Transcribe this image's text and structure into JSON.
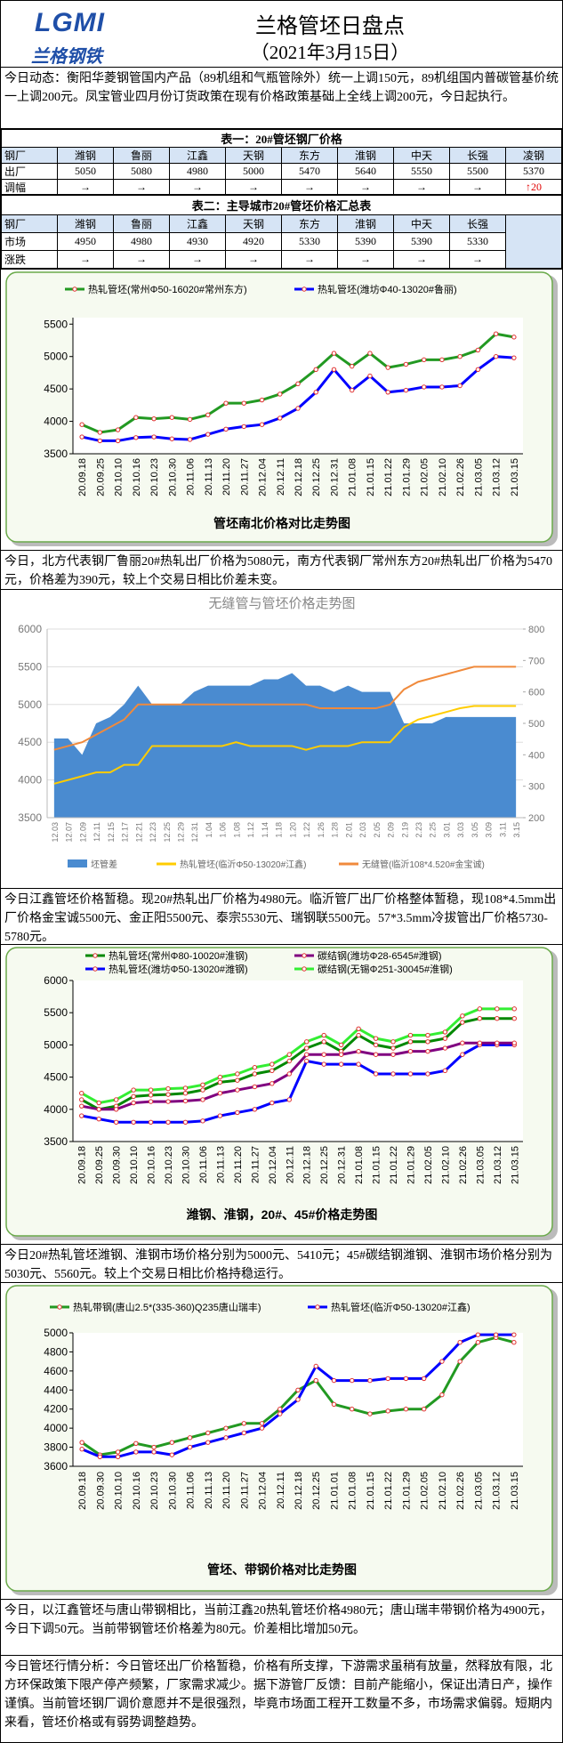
{
  "header": {
    "logo_text": "LGMI",
    "logo_name": "兰格钢铁",
    "title": "兰格管坯日盘点",
    "date": "（2021年3月15日）"
  },
  "paragraphs": [
    "今日动态：衡阳华菱钢管国内产品（89机组和气瓶管除外）统一上调150元，89机组国内普碳管基价统一上调200元。凤宝管业四月份订货政策在现有价格政策基础上全线上调200元，今日起执行。",
    "今日，北方代表钢厂鲁丽20#热轧出厂价格为5080元，南方代表钢厂常州东方20#热轧出厂价格为5470元，价格差为390元，较上个交易日相比价差未变。",
    "今日江鑫管坯价格暂稳。现20#热轧出厂价格为4980元。临沂管厂出厂价格整体暂稳，现108*4.5mm出厂价格金宝诚5500元、金正阳5500元、泰宗5530元、瑞钢联5500元。57*3.5mm冷拔管出厂价格5730-5780元。",
    "今日20#热轧管坯潍钢、淮钢市场价格分别为5000元、5410元；45#碳结钢潍钢、淮钢市场价格分别为5030元、5560元。较上个交易日相比价格持稳运行。",
    "今日，以江鑫管坯与唐山带钢相比，当前江鑫20热轧管坯价格4980元；唐山瑞丰带钢价格为4900元，今日下调50元。当前带钢管坯价格差为80元。价差相比增加50元。",
    "今日管坯行情分析：今日管坯出厂价格暂稳，价格有所支撑，下游需求虽稍有放量，然释放有限，北方环保政策下限产停产频繁，厂家需求减少。据下游管厂反馈：目前产能缩小，保证出清日产，操作谨慎。当前管坯钢厂调价意愿并不是很强烈，毕竟市场面工程开工数量不多，市场需求偏弱。短期内来看，管坯价格或有弱势调整趋势。"
  ],
  "tables": [
    {
      "title": "表一：20#管坯钢厂价格",
      "header": [
        "钢厂",
        "潍钢",
        "鲁丽",
        "江鑫",
        "天钢",
        "东方",
        "淮钢",
        "中天",
        "长强",
        "凌钢"
      ],
      "rows": [
        [
          "出厂",
          5050,
          5080,
          4980,
          5000,
          5470,
          5640,
          5550,
          5500,
          5370
        ],
        [
          "调幅",
          "→",
          "→",
          "→",
          "→",
          "→",
          "→",
          "→",
          "→",
          "↑20"
        ]
      ]
    },
    {
      "title": "表二：主导城市20#管坯价格汇总表",
      "header": [
        "钢厂",
        "潍钢",
        "鲁丽",
        "江鑫",
        "天钢",
        "东方",
        "淮钢",
        "中天",
        "长强"
      ],
      "rows": [
        [
          "市场",
          4950,
          4980,
          4930,
          4920,
          5330,
          5390,
          5390,
          5330
        ],
        [
          "涨跌",
          "→",
          "→",
          "→",
          "→",
          "→",
          "→",
          "→",
          "→"
        ]
      ]
    }
  ],
  "chart_data": [
    {
      "type": "line",
      "title": "管坯南北价格对比走势图",
      "markers": true,
      "grid": false,
      "categories": [
        "20.09.18",
        "20.09.25",
        "20.10.10",
        "20.10.16",
        "20.10.23",
        "20.10.30",
        "20.11.06",
        "20.11.13",
        "20.11.20",
        "20.11.27",
        "20.12.04",
        "20.12.11",
        "20.12.18",
        "20.12.25",
        "20.12.31",
        "21.01.08",
        "21.01.15",
        "21.01.22",
        "21.01.29",
        "21.02.05",
        "21.02.10",
        "21.02.26",
        "21.03.05",
        "21.03.12",
        "21.03.15"
      ],
      "ylim": [
        3500,
        5600
      ],
      "yticks": [
        3500,
        4000,
        4500,
        5000,
        5500
      ],
      "series": [
        {
          "name": "热轧管坯(常州Φ50-16020#常州东方)",
          "color": "#229922",
          "values": [
            3950,
            3830,
            3870,
            4060,
            4040,
            4060,
            4030,
            4100,
            4280,
            4280,
            4330,
            4420,
            4580,
            4800,
            5050,
            4850,
            5050,
            4830,
            4880,
            4950,
            4950,
            5000,
            5100,
            5350,
            5300
          ]
        },
        {
          "name": "热轧管坯(潍坊Φ40-13020#鲁丽)",
          "color": "#0000ff",
          "values": [
            3760,
            3700,
            3700,
            3750,
            3760,
            3730,
            3720,
            3800,
            3880,
            3920,
            3950,
            4050,
            4200,
            4450,
            4800,
            4480,
            4700,
            4450,
            4480,
            4530,
            4530,
            4550,
            4800,
            5000,
            4980
          ]
        }
      ]
    },
    {
      "type": "line",
      "title": "无缝管与管坯价格走势图",
      "markers": false,
      "grid": true,
      "categories": [
        "12.03",
        "12.07",
        "12.09",
        "12.11",
        "12.15",
        "12.17",
        "12.21",
        "12.23",
        "12.25",
        "12.29",
        "12.31",
        "1.04",
        "1.06",
        "1.08",
        "1.12",
        "1.14",
        "1.18",
        "1.20",
        "1.22",
        "1.26",
        "1.28",
        "2.01",
        "2.03",
        "2.05",
        "2.09",
        "2.19",
        "2.23",
        "2.25",
        "3.01",
        "3.03",
        "3.05",
        "3.09",
        "3.11",
        "3.15"
      ],
      "ylim": [
        3500,
        6000
      ],
      "yticks": [
        3500,
        4000,
        4500,
        5000,
        5500,
        6000
      ],
      "y2lim": [
        200,
        800
      ],
      "y2ticks": [
        200,
        300,
        400,
        500,
        600,
        700,
        800
      ],
      "series": [
        {
          "name": "坯管差",
          "type": "area",
          "axis": "y2",
          "color": "#4a8bd0",
          "values": [
            452,
            452,
            400,
            500,
            520,
            560,
            620,
            560,
            560,
            560,
            600,
            620,
            620,
            620,
            620,
            640,
            640,
            660,
            620,
            620,
            600,
            620,
            600,
            600,
            600,
            500,
            500,
            500,
            520,
            520,
            520,
            520,
            520,
            520
          ]
        },
        {
          "name": "热轧管坯(临沂Φ50-13020#江鑫)",
          "color": "#ffcc00",
          "values": [
            3950,
            4000,
            4050,
            4100,
            4100,
            4200,
            4200,
            4450,
            4450,
            4450,
            4450,
            4450,
            4450,
            4500,
            4450,
            4450,
            4450,
            4450,
            4400,
            4450,
            4450,
            4450,
            4500,
            4500,
            4500,
            4700,
            4800,
            4850,
            4900,
            4950,
            4980,
            4980,
            4980,
            4980
          ]
        },
        {
          "name": "无缝管(临沂108*4.520#金宝诚)",
          "color": "#f08a3c",
          "values": [
            4400,
            4450,
            4500,
            4600,
            4700,
            4800,
            5000,
            5000,
            5000,
            5000,
            5000,
            5000,
            5000,
            5000,
            5000,
            5000,
            5000,
            5000,
            5000,
            4950,
            4950,
            4950,
            4950,
            4950,
            5000,
            5200,
            5300,
            5350,
            5400,
            5450,
            5500,
            5500,
            5500,
            5500
          ]
        }
      ]
    },
    {
      "type": "line",
      "title": "潍钢、淮钢，20#、45#价格走势图",
      "markers": true,
      "grid": false,
      "categories": [
        "20.09.18",
        "20.09.25",
        "20.09.30",
        "20.10.10",
        "20.10.16",
        "20.10.23",
        "20.10.30",
        "20.11.06",
        "20.11.13",
        "20.11.20",
        "20.11.27",
        "20.12.04",
        "20.12.11",
        "20.12.18",
        "20.12.25",
        "20.12.31",
        "21.01.08",
        "21.01.15",
        "21.01.22",
        "21.01.29",
        "21.02.05",
        "21.02.10",
        "21.02.26",
        "21.03.05",
        "21.03.12",
        "21.03.15"
      ],
      "ylim": [
        3500,
        6000
      ],
      "yticks": [
        3500,
        4000,
        4500,
        5000,
        5500,
        6000
      ],
      "series": [
        {
          "name": "热轧管坯(常州Φ80-10020#淮钢)",
          "color": "#008800",
          "values": [
            4150,
            4000,
            4050,
            4200,
            4220,
            4230,
            4250,
            4300,
            4420,
            4450,
            4550,
            4600,
            4750,
            4950,
            5050,
            4900,
            5150,
            5000,
            4950,
            5050,
            5050,
            5100,
            5350,
            5410,
            5410,
            5410
          ]
        },
        {
          "name": "热轧管坯(潍坊Φ50-13020#潍钢)",
          "color": "#0000ff",
          "values": [
            3900,
            3850,
            3800,
            3800,
            3800,
            3800,
            3800,
            3820,
            3900,
            3950,
            4000,
            4100,
            4150,
            4750,
            4700,
            4700,
            4700,
            4550,
            4550,
            4550,
            4550,
            4600,
            4850,
            5000,
            5000,
            5000
          ]
        },
        {
          "name": "碳结钢(潍坊Φ28-6545#潍钢)",
          "color": "#800080",
          "values": [
            4050,
            4000,
            4000,
            4100,
            4120,
            4120,
            4130,
            4150,
            4250,
            4300,
            4350,
            4400,
            4550,
            4850,
            4850,
            4850,
            4900,
            4850,
            4850,
            4900,
            4900,
            4950,
            5030,
            5030,
            5030,
            5030
          ]
        },
        {
          "name": "碳结钢(无锡Φ251-30045#淮钢)",
          "color": "#33ee33",
          "values": [
            4250,
            4100,
            4150,
            4300,
            4300,
            4320,
            4330,
            4380,
            4500,
            4550,
            4650,
            4700,
            4850,
            5050,
            5150,
            5000,
            5250,
            5100,
            5050,
            5150,
            5150,
            5200,
            5450,
            5560,
            5560,
            5560
          ]
        }
      ]
    },
    {
      "type": "line",
      "title": "管坯、带钢价格对比走势图",
      "markers": true,
      "grid": false,
      "categories": [
        "20.09.18",
        "20.09.30",
        "20.10.10",
        "20.10.16",
        "20.10.23",
        "20.10.30",
        "20.11.06",
        "20.11.13",
        "20.11.20",
        "20.11.27",
        "20.12.04",
        "20.12.11",
        "20.12.18",
        "20.12.25",
        "21.01.01",
        "21.01.08",
        "21.01.15",
        "21.01.22",
        "21.01.29",
        "21.02.05",
        "21.02.10",
        "21.02.26",
        "21.03.05",
        "21.03.12",
        "21.03.15"
      ],
      "ylim": [
        3600,
        5000
      ],
      "yticks": [
        3600,
        3800,
        4000,
        4200,
        4400,
        4600,
        4800,
        5000
      ],
      "series": [
        {
          "name": "热轧带钢(唐山2.5*(335-360)Q235唐山瑞丰)",
          "color": "#229922",
          "values": [
            3850,
            3720,
            3750,
            3840,
            3800,
            3850,
            3900,
            3950,
            4000,
            4050,
            4050,
            4200,
            4400,
            4500,
            4250,
            4200,
            4150,
            4180,
            4200,
            4200,
            4350,
            4700,
            4900,
            4950,
            4900
          ]
        },
        {
          "name": "热轧管坯(临沂Φ50-13020#江鑫)",
          "color": "#0000ff",
          "values": [
            3780,
            3700,
            3700,
            3750,
            3750,
            3720,
            3800,
            3850,
            3900,
            3950,
            4000,
            4150,
            4300,
            4650,
            4500,
            4500,
            4500,
            4520,
            4520,
            4520,
            4700,
            4900,
            4980,
            4980,
            4980
          ]
        }
      ]
    }
  ]
}
